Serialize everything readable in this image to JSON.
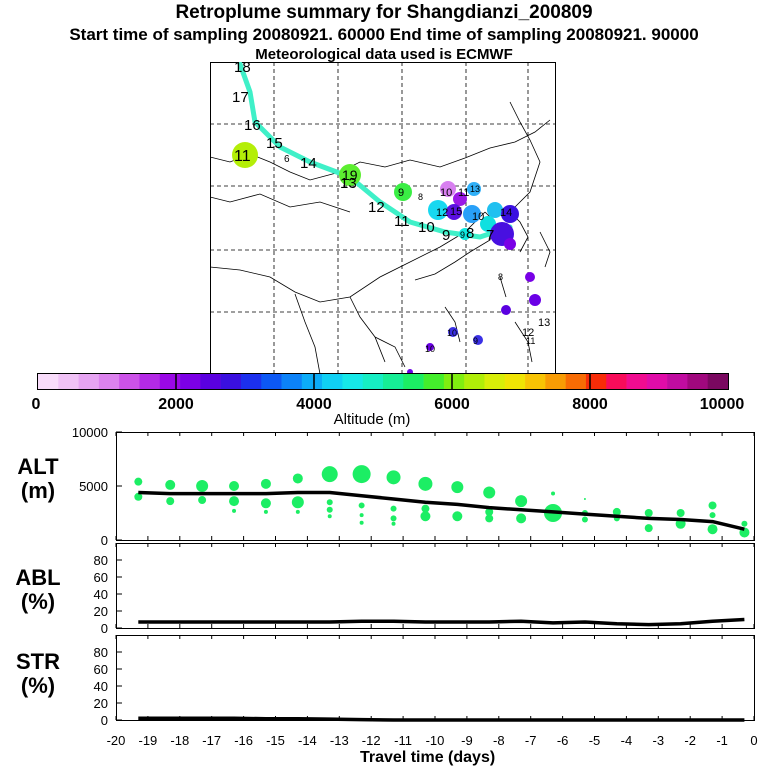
{
  "header": {
    "title": "Retroplume summary for Shangdianzi_200809",
    "subtitle": "Start time of sampling 20080921. 60000     End time of sampling 20080921. 90000",
    "met_note": "Meteorological data used is ECMWF"
  },
  "colorbar": {
    "ticks": [
      "0",
      "2000",
      "4000",
      "6000",
      "8000",
      "10000"
    ],
    "label": "Altitude (m)",
    "colors": [
      "#f8dcfa",
      "#f0c2f6",
      "#e6a4f2",
      "#dc82ee",
      "#cc52e8",
      "#b42ae6",
      "#9a08e6",
      "#7c00e6",
      "#5a00e0",
      "#3a10e0",
      "#1c30ee",
      "#0c58f4",
      "#0c82f8",
      "#0cacf8",
      "#10d0f4",
      "#16e8e8",
      "#16eec4",
      "#16ee96",
      "#1cee64",
      "#44ee2c",
      "#80ee10",
      "#b0ee08",
      "#d8ee08",
      "#f0e404",
      "#f8c404",
      "#f89c04",
      "#f86c04",
      "#f82c08",
      "#f80c5a",
      "#f00c90",
      "#e00ca8",
      "#c00ca0",
      "#a0087e",
      "#7a0860"
    ]
  },
  "map": {
    "trajectory_labels": [
      "18",
      "17",
      "16",
      "15",
      "14",
      "13",
      "12",
      "11",
      "10",
      "9",
      "8",
      "7",
      "6"
    ],
    "cluster_labels": [
      "11",
      "19",
      "9",
      "8",
      "10",
      "11",
      "13",
      "15",
      "14",
      "12",
      "10",
      "9",
      "8",
      "10",
      "12",
      "13",
      "11",
      "10",
      "9"
    ]
  },
  "chart_data": [
    {
      "type": "scatter",
      "panel": "ALT",
      "ylabel_lines": [
        "ALT",
        "(m)"
      ],
      "ylim": [
        0,
        10000
      ],
      "yticks": [
        "10000",
        "5000",
        "0"
      ],
      "xlim": [
        -20,
        0
      ],
      "plume_color": "#1cee64",
      "points": [
        {
          "x": -19.3,
          "y": 5400,
          "r": 4
        },
        {
          "x": -19.3,
          "y": 4000,
          "r": 4
        },
        {
          "x": -18.3,
          "y": 5100,
          "r": 5
        },
        {
          "x": -18.3,
          "y": 3600,
          "r": 4
        },
        {
          "x": -17.3,
          "y": 5000,
          "r": 6
        },
        {
          "x": -17.3,
          "y": 3700,
          "r": 4
        },
        {
          "x": -16.3,
          "y": 5000,
          "r": 5
        },
        {
          "x": -16.3,
          "y": 3600,
          "r": 5
        },
        {
          "x": -16.3,
          "y": 2700,
          "r": 2
        },
        {
          "x": -15.3,
          "y": 5200,
          "r": 5
        },
        {
          "x": -15.3,
          "y": 3400,
          "r": 5
        },
        {
          "x": -15.3,
          "y": 2600,
          "r": 2
        },
        {
          "x": -14.3,
          "y": 5700,
          "r": 5
        },
        {
          "x": -14.3,
          "y": 3500,
          "r": 6
        },
        {
          "x": -14.3,
          "y": 2600,
          "r": 2
        },
        {
          "x": -13.3,
          "y": 6100,
          "r": 8
        },
        {
          "x": -13.3,
          "y": 3500,
          "r": 3
        },
        {
          "x": -13.3,
          "y": 2800,
          "r": 3
        },
        {
          "x": -13.3,
          "y": 2200,
          "r": 2
        },
        {
          "x": -12.3,
          "y": 6100,
          "r": 9
        },
        {
          "x": -12.3,
          "y": 3200,
          "r": 3
        },
        {
          "x": -12.3,
          "y": 2300,
          "r": 2
        },
        {
          "x": -12.3,
          "y": 1600,
          "r": 2
        },
        {
          "x": -11.3,
          "y": 5800,
          "r": 7
        },
        {
          "x": -11.3,
          "y": 2900,
          "r": 3
        },
        {
          "x": -11.3,
          "y": 2000,
          "r": 3
        },
        {
          "x": -11.3,
          "y": 1500,
          "r": 2
        },
        {
          "x": -10.3,
          "y": 5200,
          "r": 7
        },
        {
          "x": -10.3,
          "y": 2900,
          "r": 4
        },
        {
          "x": -10.3,
          "y": 2200,
          "r": 5
        },
        {
          "x": -9.3,
          "y": 4900,
          "r": 6
        },
        {
          "x": -9.3,
          "y": 2200,
          "r": 5
        },
        {
          "x": -8.3,
          "y": 4400,
          "r": 6
        },
        {
          "x": -8.3,
          "y": 2600,
          "r": 4
        },
        {
          "x": -8.3,
          "y": 2000,
          "r": 4
        },
        {
          "x": -7.3,
          "y": 3600,
          "r": 6
        },
        {
          "x": -7.3,
          "y": 2000,
          "r": 5
        },
        {
          "x": -6.3,
          "y": 4300,
          "r": 2
        },
        {
          "x": -6.3,
          "y": 3000,
          "r": 3
        },
        {
          "x": -6.3,
          "y": 2500,
          "r": 9
        },
        {
          "x": -5.3,
          "y": 3800,
          "r": 1
        },
        {
          "x": -5.3,
          "y": 2500,
          "r": 3
        },
        {
          "x": -5.3,
          "y": 1900,
          "r": 3
        },
        {
          "x": -4.3,
          "y": 2600,
          "r": 4
        },
        {
          "x": -4.3,
          "y": 2000,
          "r": 3
        },
        {
          "x": -3.3,
          "y": 2500,
          "r": 4
        },
        {
          "x": -3.3,
          "y": 1100,
          "r": 4
        },
        {
          "x": -2.3,
          "y": 2500,
          "r": 4
        },
        {
          "x": -2.3,
          "y": 1500,
          "r": 5
        },
        {
          "x": -1.3,
          "y": 3200,
          "r": 4
        },
        {
          "x": -1.3,
          "y": 2300,
          "r": 3
        },
        {
          "x": -1.3,
          "y": 1000,
          "r": 5
        },
        {
          "x": -0.3,
          "y": 1500,
          "r": 3
        },
        {
          "x": -0.3,
          "y": 700,
          "r": 5
        }
      ],
      "line": {
        "x": [
          -19.3,
          -18.3,
          -17.3,
          -16.3,
          -15.3,
          -14.3,
          -13.3,
          -12.3,
          -11.3,
          -10.3,
          -9.3,
          -8.3,
          -7.3,
          -6.3,
          -5.3,
          -4.3,
          -3.3,
          -2.3,
          -1.3,
          -0.3
        ],
        "y": [
          4400,
          4300,
          4300,
          4300,
          4300,
          4400,
          4400,
          4100,
          3800,
          3500,
          3300,
          3000,
          2800,
          2600,
          2400,
          2200,
          2000,
          1900,
          1700,
          1000
        ]
      }
    },
    {
      "type": "line",
      "panel": "ABL",
      "ylabel_lines": [
        "ABL",
        "(%)"
      ],
      "ylim": [
        0,
        100
      ],
      "yticks": [
        "80",
        "60",
        "40",
        "20",
        "0"
      ],
      "xlim": [
        -20,
        0
      ],
      "x": [
        -19.3,
        -18.3,
        -17.3,
        -16.3,
        -15.3,
        -14.3,
        -13.3,
        -12.3,
        -11.3,
        -10.3,
        -9.3,
        -8.3,
        -7.3,
        -6.3,
        -5.3,
        -4.3,
        -3.3,
        -2.3,
        -1.3,
        -0.3
      ],
      "y": [
        7,
        7,
        7,
        7,
        7,
        7,
        7,
        8,
        8,
        7,
        7,
        7,
        8,
        6,
        7,
        5,
        4,
        5,
        8,
        10
      ]
    },
    {
      "type": "line",
      "panel": "STR",
      "ylabel_lines": [
        "STR",
        "(%)"
      ],
      "ylim": [
        0,
        100
      ],
      "yticks": [
        "80",
        "60",
        "40",
        "20",
        "0"
      ],
      "xlim": [
        -20,
        0
      ],
      "x": [
        -19.3,
        -18.3,
        -17.3,
        -16.3,
        -15.3,
        -14.3,
        -13.3,
        -12.3,
        -11.3,
        -10.3,
        -9.3,
        -8.3,
        -7.3,
        -6.3,
        -5.3,
        -4.3,
        -3.3,
        -2.3,
        -1.3,
        -0.3
      ],
      "y": [
        2,
        2,
        2,
        2,
        1.5,
        1.5,
        1,
        0.5,
        0,
        0,
        0,
        0,
        0,
        0,
        0,
        0,
        0,
        0,
        0,
        0
      ]
    }
  ],
  "xaxis": {
    "ticks": [
      "-20",
      "-19",
      "-18",
      "-17",
      "-16",
      "-15",
      "-14",
      "-13",
      "-12",
      "-11",
      "-10",
      "-9",
      "-8",
      "-7",
      "-6",
      "-5",
      "-4",
      "-3",
      "-2",
      "-1",
      "0"
    ],
    "label": "Travel time (days)"
  }
}
